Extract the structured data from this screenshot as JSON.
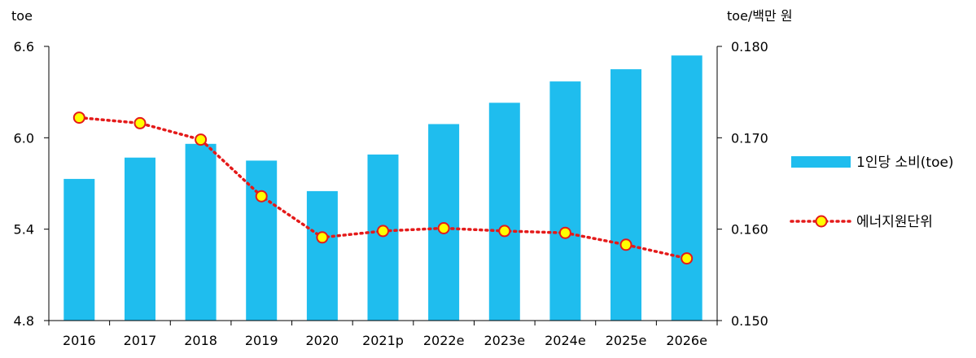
{
  "chart_data": {
    "type": "bar+line",
    "categories": [
      "2016",
      "2017",
      "2018",
      "2019",
      "2020",
      "2021p",
      "2022e",
      "2023e",
      "2024e",
      "2025e",
      "2026e"
    ],
    "series": [
      {
        "name": "1인당 소비(toe)",
        "type": "bar",
        "axis": "left",
        "color": "#1FBDEE",
        "values": [
          5.73,
          5.87,
          5.96,
          5.85,
          5.65,
          5.89,
          6.09,
          6.23,
          6.37,
          6.45,
          6.54
        ]
      },
      {
        "name": "에너지원단위",
        "type": "line",
        "axis": "right",
        "line_color": "#E41A1A",
        "marker_fill": "#FFFF00",
        "marker_stroke": "#E41A1A",
        "line_style": "dotted",
        "values": [
          0.1722,
          0.1716,
          0.1698,
          0.1636,
          0.1591,
          0.1598,
          0.1601,
          0.1598,
          0.1596,
          0.1583,
          0.1568
        ]
      }
    ],
    "y_left": {
      "unit": "toe",
      "ylim": [
        4.8,
        6.6
      ],
      "ticks": [
        "4.8",
        "5.4",
        "6.0",
        "6.6"
      ],
      "tick_values": [
        4.8,
        5.4,
        6.0,
        6.6
      ]
    },
    "y_right": {
      "unit": "toe/백만 원",
      "ylim": [
        0.15,
        0.18
      ],
      "ticks": [
        "0.150",
        "0.160",
        "0.170",
        "0.180"
      ],
      "tick_values": [
        0.15,
        0.16,
        0.17,
        0.18
      ]
    },
    "grid": false,
    "legend_position": "right"
  }
}
